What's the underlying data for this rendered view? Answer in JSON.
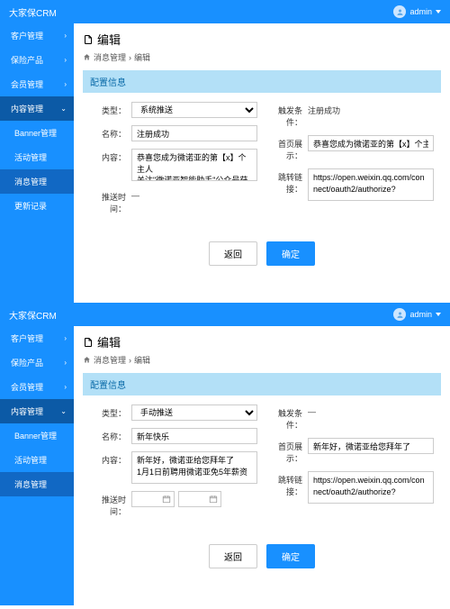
{
  "brand": "大家保CRM",
  "user": "admin",
  "sidebar": {
    "items": [
      {
        "label": "客户管理",
        "type": "parent"
      },
      {
        "label": "保险产品",
        "type": "parent"
      },
      {
        "label": "会员管理",
        "type": "parent"
      },
      {
        "label": "内容管理",
        "type": "open"
      },
      {
        "label": "Banner管理",
        "type": "sub"
      },
      {
        "label": "活动管理",
        "type": "sub"
      },
      {
        "label": "消息管理",
        "type": "sub-active"
      },
      {
        "label": "更新记录",
        "type": "sub"
      }
    ]
  },
  "page": {
    "title": "编辑",
    "breadcrumb": [
      "消息管理",
      "编辑"
    ],
    "sectionTitle": "配置信息"
  },
  "labels": {
    "type": "类型：",
    "name": "名称：",
    "content": "内容：",
    "pushTime": "推送时间：",
    "triggerCond": "触发条件：",
    "homepageDisplay": "首页展示：",
    "jumpLink": "跳转链接："
  },
  "buttons": {
    "back": "返回",
    "submit": "确定"
  },
  "inst": [
    {
      "typeValue": "系统推送",
      "nameValue": "注册成功",
      "contentValue": "恭喜您成为微诺亚的第【x】个主人\n关注\"微诺亚智能助手\"公众号获取更多实时动态",
      "pushTimeValue": "—",
      "triggerCondValue": "注册成功",
      "homepageDisplayValue": "恭喜您成为微诺亚的第【x】个主人",
      "jumpLinkValue": "https://open.weixin.qq.com/connect/oauth2/authorize?",
      "showDatePickers": false
    },
    {
      "typeValue": "手动推送",
      "nameValue": "新年快乐",
      "contentValue": "新年好，微诺亚给您拜年了\n1月1日前聘用微诺亚免5年薪资",
      "pushTimeValue": "",
      "triggerCondValue": "—",
      "homepageDisplayValue": "新年好，微诺亚给您拜年了",
      "jumpLinkValue": "https://open.weixin.qq.com/connect/oauth2/authorize?",
      "showDatePickers": true
    }
  ]
}
